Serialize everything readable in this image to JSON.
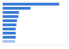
{
  "chart_data": {
    "type": "bar",
    "orientation": "horizontal",
    "categories": [
      null,
      null,
      null,
      null,
      null,
      null,
      null,
      null,
      null,
      null
    ],
    "values": [
      88,
      44,
      26,
      25,
      23,
      22,
      21,
      21,
      21,
      20
    ],
    "colors": [
      "#3b7dd8",
      "#3b7dd8",
      "#3b7dd8",
      "#3b7dd8",
      "#3b7dd8",
      "#3b7dd8",
      "#3b7dd8",
      "#3b7dd8",
      "#3b7dd8",
      "#a8c6f0"
    ],
    "xlim": [
      0,
      100
    ],
    "grid": false,
    "tick_labels": false
  }
}
